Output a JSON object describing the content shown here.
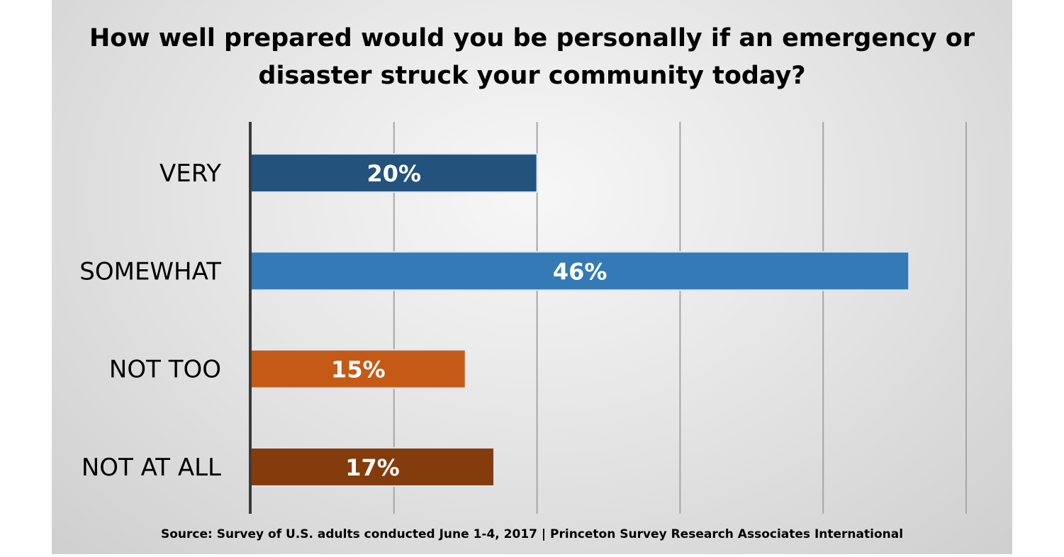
{
  "chart_data": {
    "type": "bar",
    "orientation": "horizontal",
    "title": "How well prepared would you be personally if an emergency or disaster struck your community today?",
    "categories": [
      "VERY",
      "SOMEWHAT",
      "NOT TOO",
      "NOT AT ALL"
    ],
    "values": [
      20,
      46,
      15,
      17
    ],
    "data_labels": [
      "20%",
      "46%",
      "15%",
      "17%"
    ],
    "colors": [
      "#23527c",
      "#337ab7",
      "#c55a16",
      "#843c0c"
    ],
    "xlim": [
      0,
      50
    ],
    "grid": true,
    "legend": "none",
    "source": "Source: Survey of U.S. adults conducted June 1-4, 2017 | Princeton Survey Research Associates International"
  }
}
